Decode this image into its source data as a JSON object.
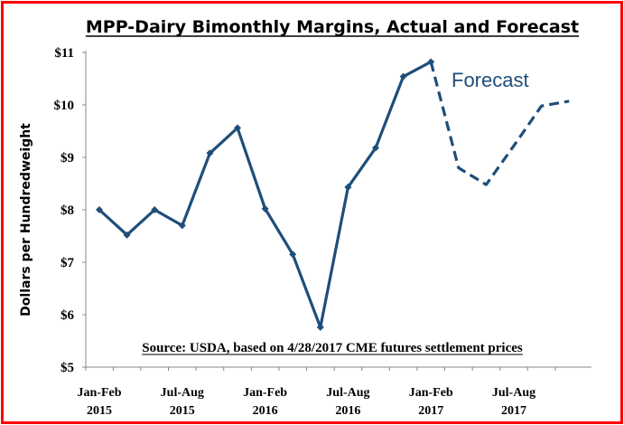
{
  "chart_data": {
    "type": "line",
    "title": "MPP-Dairy Bimonthly Margins, Actual and Forecast",
    "ylabel": "Dollars per Hundredweight",
    "xlabel": "",
    "ylim": [
      5,
      11
    ],
    "yticks": [
      "$5",
      "$6",
      "$7",
      "$8",
      "$9",
      "$10",
      "$11"
    ],
    "ytick_values": [
      5,
      6,
      7,
      8,
      9,
      10,
      11
    ],
    "xtick_labels": [
      {
        "line1": "Jan-Feb",
        "line2": "2015",
        "index": 0
      },
      {
        "line1": "Jul-Aug",
        "line2": "2015",
        "index": 3
      },
      {
        "line1": "Jan-Feb",
        "line2": "2016",
        "index": 6
      },
      {
        "line1": "Jul-Aug",
        "line2": "2016",
        "index": 9
      },
      {
        "line1": "Jan-Feb",
        "line2": "2017",
        "index": 12
      },
      {
        "line1": "Jul-Aug",
        "line2": "2017",
        "index": 15
      }
    ],
    "categories": [
      "Jan-Feb 2015",
      "Mar-Apr 2015",
      "May-Jun 2015",
      "Jul-Aug 2015",
      "Sep-Oct 2015",
      "Nov-Dec 2015",
      "Jan-Feb 2016",
      "Mar-Apr 2016",
      "May-Jun 2016",
      "Jul-Aug 2016",
      "Sep-Oct 2016",
      "Nov-Dec 2016",
      "Jan-Feb 2017",
      "Mar-Apr 2017",
      "May-Jun 2017",
      "Jul-Aug 2017",
      "Sep-Oct 2017",
      "Nov-Dec 2017"
    ],
    "series": [
      {
        "style": "actual",
        "color": "#1f4e79",
        "values": [
          8.0,
          7.52,
          8.0,
          7.7,
          9.08,
          9.56,
          8.02,
          7.15,
          5.76,
          8.43,
          9.18,
          10.54,
          10.82,
          null,
          null,
          null,
          null,
          null
        ]
      },
      {
        "style": "forecast",
        "color": "#1f4e79",
        "values": [
          null,
          null,
          null,
          null,
          null,
          null,
          null,
          null,
          null,
          null,
          null,
          null,
          10.82,
          8.8,
          8.48,
          9.22,
          9.98,
          10.07
        ]
      }
    ],
    "annotations": {
      "forecast_label": "Forecast",
      "source": "Source:  USDA, based on 4/28/2017 CME futures settlement prices"
    },
    "grid": false,
    "legend": "none"
  },
  "colors": {
    "frame": "#ff0000",
    "line": "#1f4e79"
  }
}
